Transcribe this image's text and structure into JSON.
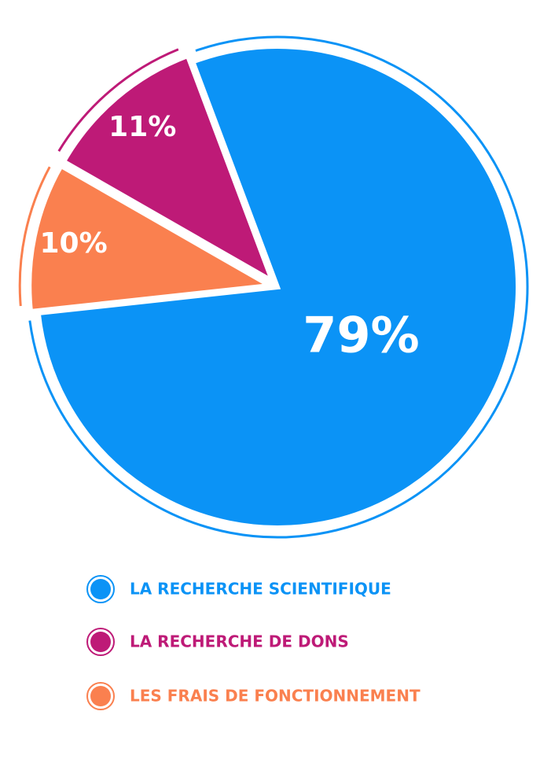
{
  "chart_data": {
    "type": "pie",
    "series": [
      {
        "name": "LA RECHERCHE SCIENTIFIQUE",
        "color": "#0b93f6",
        "values": [
          79
        ],
        "value_labels": [
          "79%"
        ]
      },
      {
        "name": "LA RECHERCHE DE DONS",
        "color": "#be1a77",
        "values": [
          11
        ],
        "value_labels": [
          "11%"
        ]
      },
      {
        "name": "LES FRAIS DE FONCTIONNEMENT",
        "color": "#fa804f",
        "values": [
          10
        ],
        "value_labels": [
          "10%"
        ]
      }
    ]
  }
}
